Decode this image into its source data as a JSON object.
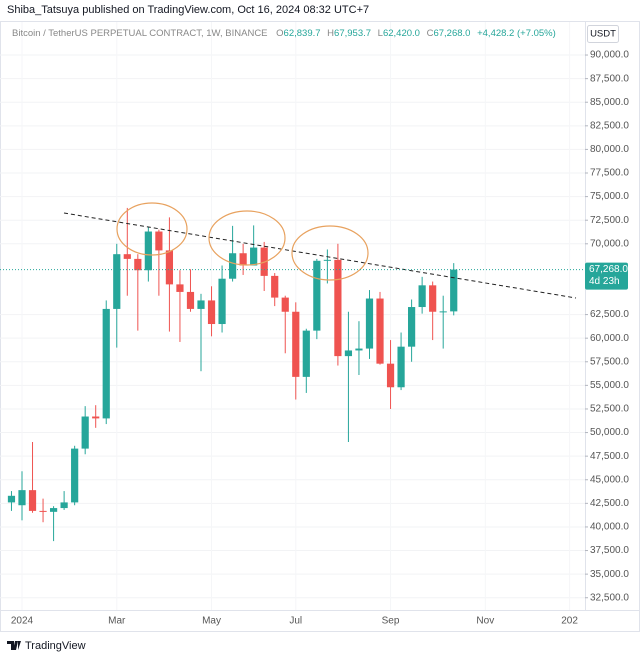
{
  "header": {
    "publisher": "Shiba_Tatsuya published on TradingView.com, Oct 16, 2024 08:32 UTC+7"
  },
  "footer": {
    "brand": "TradingView"
  },
  "chart_data": {
    "type": "candlestick",
    "symbol": "Bitcoin / TetherUS PERPETUAL CONTRACT, 1W, BINANCE",
    "ohlc_header": [
      {
        "prefix": "O",
        "label": "62,839.7"
      },
      {
        "prefix": "H",
        "label": "67,953.7"
      },
      {
        "prefix": "L",
        "label": "62,420.0"
      },
      {
        "prefix": "C",
        "label": "67,268.0"
      }
    ],
    "change": "+4,428.2 (+7.05%)",
    "currency": "USDT",
    "categories": [
      null,
      "2024",
      null,
      null,
      null,
      null,
      null,
      null,
      null,
      null,
      "Mar",
      null,
      null,
      null,
      null,
      null,
      null,
      null,
      null,
      "May",
      null,
      null,
      null,
      null,
      null,
      null,
      null,
      "Jul",
      null,
      null,
      null,
      null,
      null,
      null,
      null,
      null,
      "Sep",
      null,
      null,
      null,
      null,
      null,
      null,
      null,
      null,
      "Nov",
      null,
      null,
      null,
      null,
      null,
      null,
      null,
      "202"
    ],
    "open": [
      42600,
      42300,
      43900,
      41700,
      41600,
      42000,
      42600,
      48300,
      51700,
      51500,
      63100,
      68900,
      68400,
      67200,
      71300,
      69300,
      65700,
      64900,
      63100,
      64000,
      61500,
      66300,
      69000,
      67700,
      69600,
      66600,
      64300,
      62800,
      55900,
      60800,
      68200,
      68300,
      58100,
      58700,
      58900,
      64200,
      57300,
      54800,
      59100,
      63300,
      65600,
      62800,
      62839.7,
      null,
      null,
      null,
      null,
      null,
      null,
      null,
      null,
      null,
      null,
      null
    ],
    "high": [
      43800,
      45900,
      49000,
      43000,
      42200,
      43800,
      48600,
      52800,
      52900,
      64000,
      70000,
      73800,
      68900,
      71800,
      71500,
      72800,
      67200,
      67300,
      64700,
      65500,
      67700,
      71900,
      70000,
      71950,
      70200,
      66900,
      64500,
      63800,
      61000,
      68400,
      69400,
      70000,
      62800,
      61800,
      65100,
      64900,
      59800,
      60600,
      64100,
      66500,
      66000,
      64500,
      67953.7,
      null,
      null,
      null,
      null,
      null,
      null,
      null,
      null,
      null,
      null,
      null
    ],
    "low": [
      41700,
      40700,
      41500,
      40500,
      38500,
      41800,
      42300,
      47700,
      50500,
      50900,
      59000,
      64500,
      60800,
      66000,
      64500,
      60700,
      59600,
      62800,
      56500,
      60200,
      60600,
      66000,
      66700,
      67700,
      65000,
      63400,
      58400,
      53500,
      54200,
      59900,
      65800,
      57100,
      49000,
      56100,
      57800,
      57200,
      52500,
      54500,
      57500,
      62600,
      59800,
      58900,
      62420.0,
      null,
      null,
      null,
      null,
      null,
      null,
      null,
      null,
      null,
      null,
      null
    ],
    "close": [
      43300,
      43900,
      41700,
      41600,
      42000,
      42600,
      48300,
      51700,
      51500,
      63100,
      68900,
      68400,
      67200,
      71300,
      69300,
      65700,
      64900,
      63100,
      64000,
      61500,
      66300,
      69000,
      67700,
      69600,
      66600,
      64300,
      62800,
      55900,
      60800,
      68200,
      68300,
      58100,
      58700,
      58900,
      64200,
      57300,
      54800,
      59100,
      63300,
      65600,
      62800,
      62839.8,
      67268.0,
      null,
      null,
      null,
      null,
      null,
      null,
      null,
      null,
      null,
      null,
      null
    ],
    "up_color": "#26a69a",
    "down_color": "#ef5350",
    "ylim": [
      31200,
      93500
    ],
    "yticks": [
      {
        "value": 32500,
        "label": "32,500.0"
      },
      {
        "value": 35000,
        "label": "35,000.0"
      },
      {
        "value": 37500,
        "label": "37,500.0"
      },
      {
        "value": 40000,
        "label": "40,000.0"
      },
      {
        "value": 42500,
        "label": "42,500.0"
      },
      {
        "value": 45000,
        "label": "45,000.0"
      },
      {
        "value": 47500,
        "label": "47,500.0"
      },
      {
        "value": 50000,
        "label": "50,000.0"
      },
      {
        "value": 52500,
        "label": "52,500.0"
      },
      {
        "value": 55000,
        "label": "55,000.0"
      },
      {
        "value": 57500,
        "label": "57,500.0"
      },
      {
        "value": 60000,
        "label": "60,000.0"
      },
      {
        "value": 62500,
        "label": "62,500.0"
      },
      {
        "value": 70000,
        "label": "70,000.0"
      },
      {
        "value": 72500,
        "label": "72,500.0"
      },
      {
        "value": 75000,
        "label": "75,000.0"
      },
      {
        "value": 77500,
        "label": "77,500.0"
      },
      {
        "value": 80000,
        "label": "80,000.0"
      },
      {
        "value": 82500,
        "label": "82,500.0"
      },
      {
        "value": 85000,
        "label": "85,000.0"
      },
      {
        "value": 87500,
        "label": "87,500.0"
      },
      {
        "value": 90000,
        "label": "90,000.0"
      }
    ],
    "grid": true,
    "last_price": {
      "value": 67268,
      "label": "67,268.0"
    },
    "countdown": "4d 23h"
  }
}
